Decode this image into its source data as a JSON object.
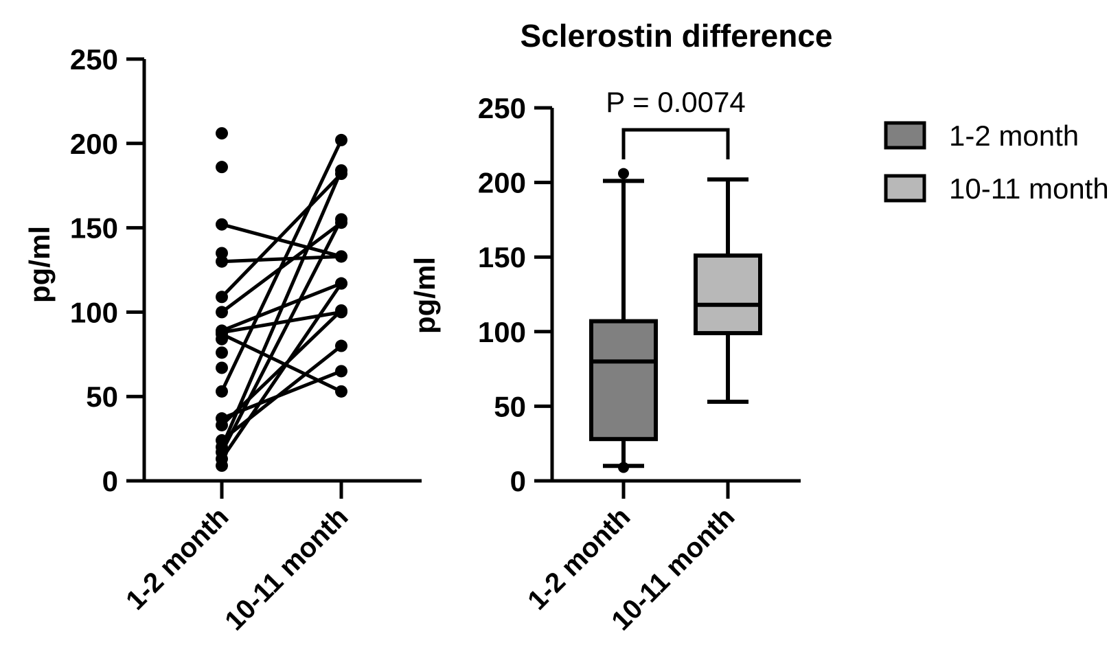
{
  "chart_data": [
    {
      "type": "scatter",
      "subtype": "paired-before-after",
      "title": "",
      "ylabel": "pg/ml",
      "ylim": [
        0,
        250
      ],
      "yticks": [
        0,
        50,
        100,
        150,
        200,
        250
      ],
      "categories": [
        "1-2 month",
        "10-11 month"
      ],
      "pairs": [
        [
          152,
          133
        ],
        [
          130,
          133
        ],
        [
          109,
          182
        ],
        [
          100,
          153
        ],
        [
          89,
          117
        ],
        [
          88,
          100
        ],
        [
          87,
          53
        ],
        [
          53,
          202
        ],
        [
          37,
          65
        ],
        [
          33,
          101
        ],
        [
          24,
          80
        ],
        [
          20,
          184
        ],
        [
          17,
          155
        ],
        [
          13,
          117
        ]
      ],
      "unpaired_left": [
        206,
        186,
        135,
        84,
        76,
        67,
        9
      ]
    },
    {
      "type": "box",
      "title": "Sclerostin difference",
      "ylabel": "pg/ml",
      "ylim": [
        0,
        250
      ],
      "yticks": [
        0,
        50,
        100,
        150,
        200,
        250
      ],
      "categories": [
        "1-2 month",
        "10-11 month"
      ],
      "series": [
        {
          "name": "1-2 month",
          "min": 10,
          "q1": 28,
          "median": 80,
          "q3": 107,
          "max": 201,
          "outliers": [
            206,
            9
          ],
          "color": "#808080"
        },
        {
          "name": "10-11 month",
          "min": 53,
          "q1": 99,
          "median": 118,
          "q3": 151,
          "max": 202,
          "outliers": [],
          "color": "#b8b8b8"
        }
      ],
      "annotation": "P = 0.0074",
      "legend_position": "right"
    }
  ]
}
